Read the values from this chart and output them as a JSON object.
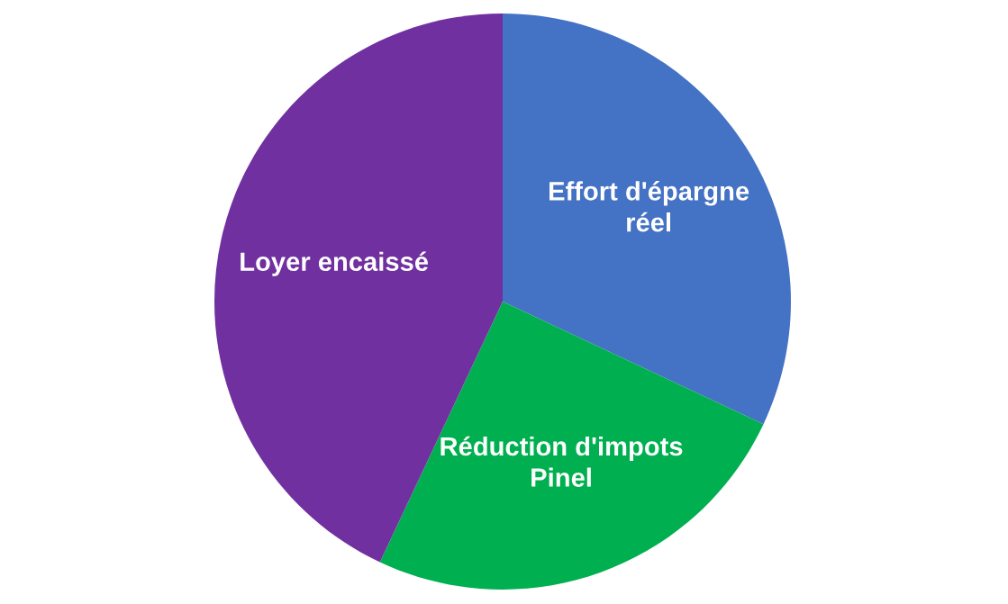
{
  "chart_data": {
    "type": "pie",
    "categories": [
      "Effort d'épargne\nréel",
      "Réduction d'impots\nPinel",
      "Loyer encaissé"
    ],
    "values": [
      32,
      25,
      43
    ],
    "colors": [
      "#4472c4",
      "#00b050",
      "#7030a0"
    ]
  }
}
